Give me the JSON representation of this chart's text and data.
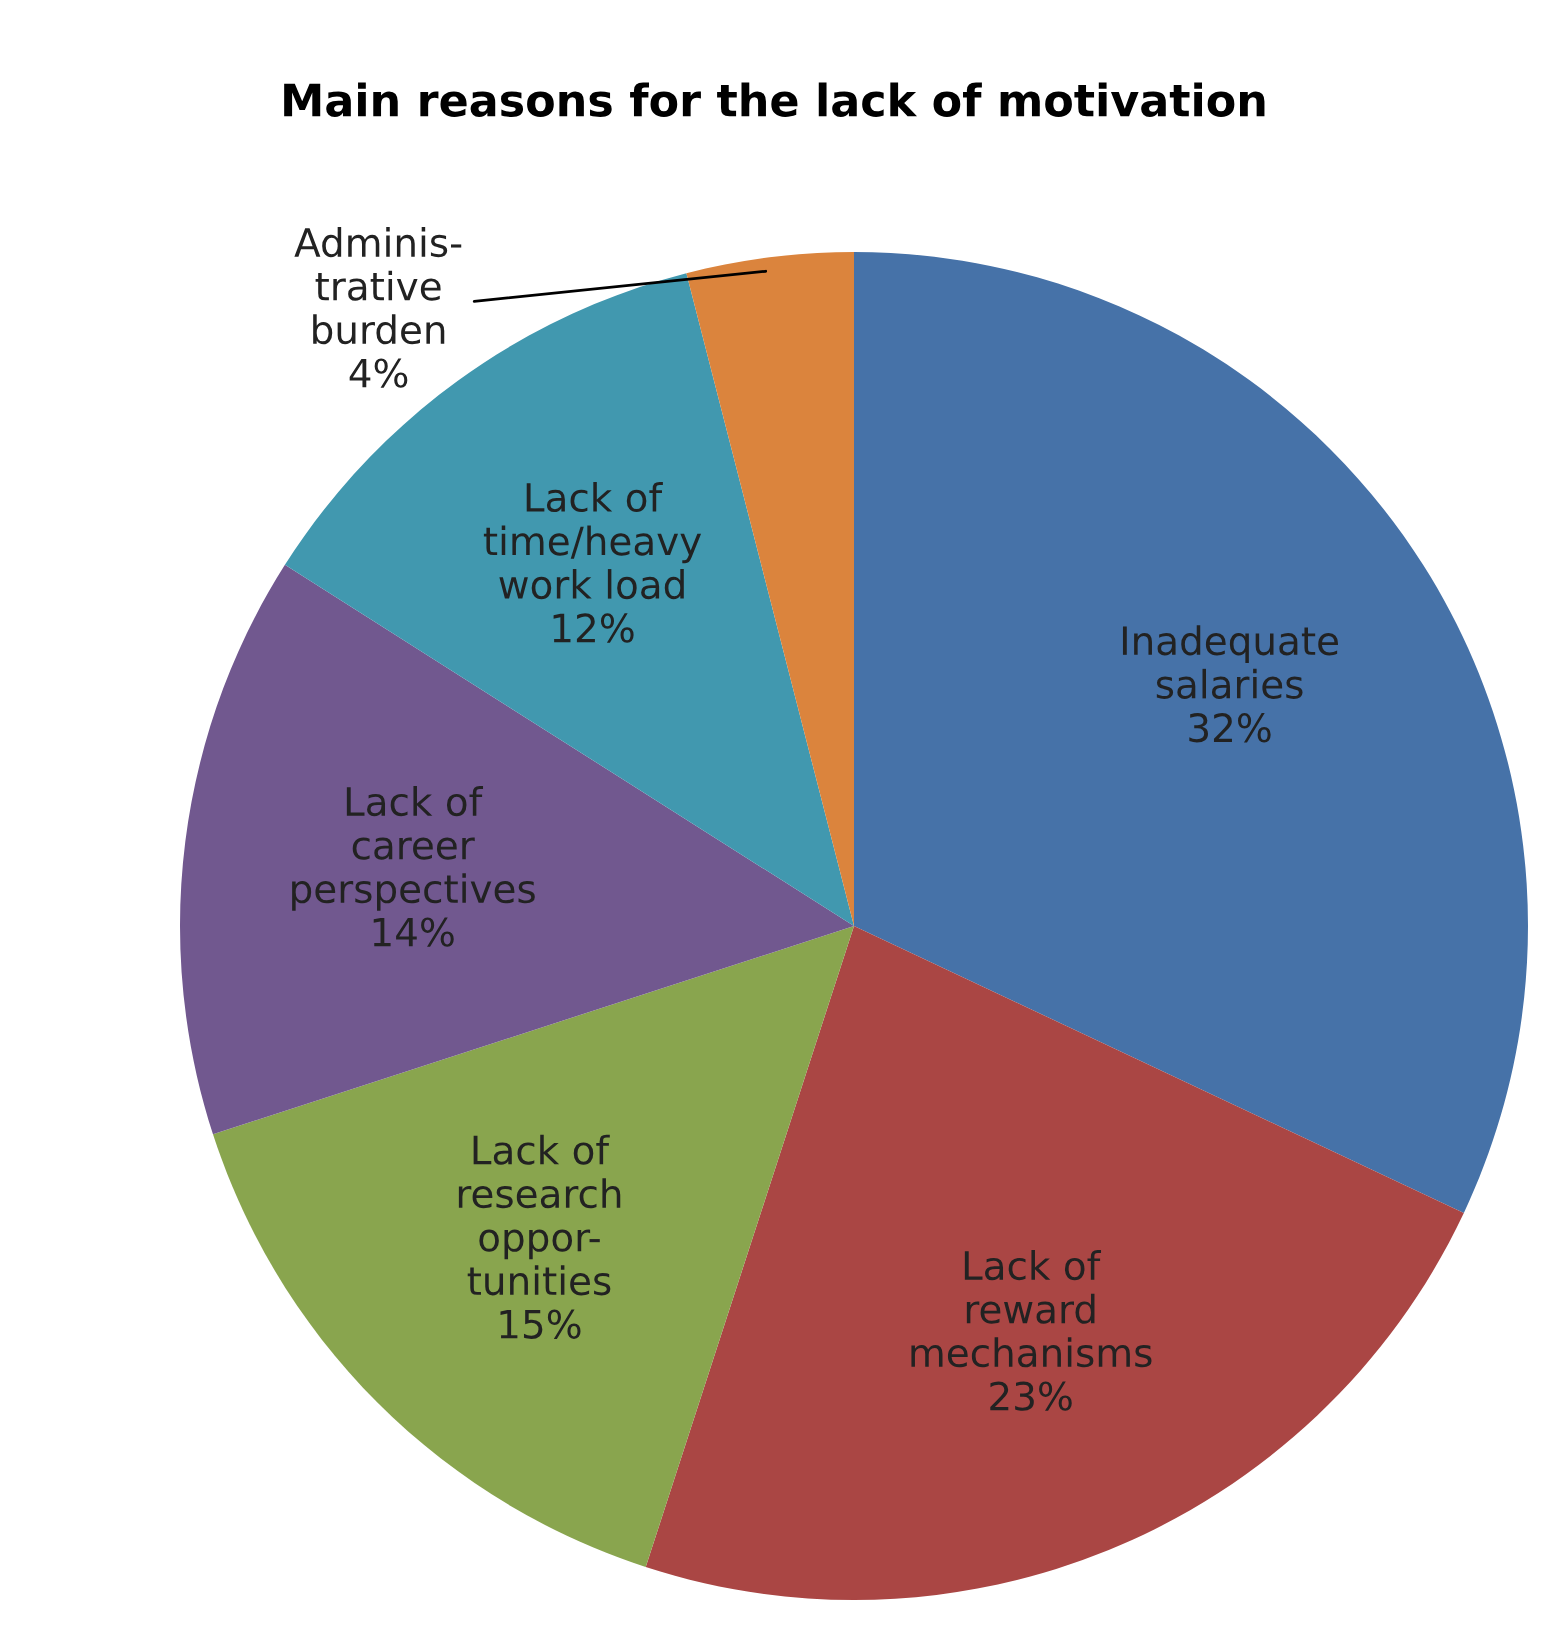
{
  "chart_data": {
    "type": "pie",
    "title": "Main reasons for the lack of motivation",
    "categories": [
      "Inadequate\nsalaries",
      "Lack of\nreward\nmechanisms",
      "Lack of\nresearch\noppor-\ntunities",
      "Lack of\ncareer\nperspectives",
      "Lack of\ntime/heavy\nwork load",
      "Adminis-\ntrative\nburden"
    ],
    "values": [
      32,
      23,
      15,
      14,
      12,
      4
    ],
    "colors": [
      "#4672a8",
      "#aa4644",
      "#89a54e",
      "#71588f",
      "#4198af",
      "#db843d"
    ],
    "value_labels": [
      "32%",
      "23%",
      "15%",
      "14%",
      "12%",
      "4%"
    ]
  }
}
